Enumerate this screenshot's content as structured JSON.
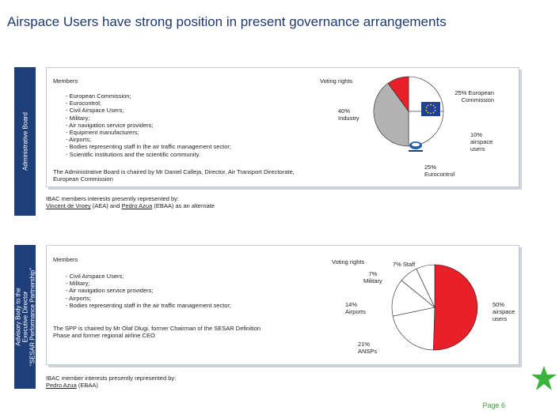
{
  "title": "Airspace Users have strong position in present governance arrangements",
  "colors": {
    "accent_navy": "#1f3f7a",
    "red": "#e8202a",
    "gray": "#b3b3b3",
    "page_green": "#3a9a3a",
    "star_green": "#3cb43c"
  },
  "board": {
    "side_label": "Administrative Board",
    "members_heading": "Members",
    "voting_heading": "Voting rights",
    "members": [
      "- European Commission;",
      "- Eurocontrol;",
      "- Civil Airspace Users;",
      "- Military;",
      "- Air navigation service providers;",
      "- Equipment manufacturers;",
      "- Airports;",
      "- Bodies representing staff in the air traffic management sector;",
      "- Scientific institutions and the scientific community."
    ],
    "chair_line1": "The Administrative Board is chaired by  Mr Daniel Calleja, Director, Air Transport Directorate,",
    "chair_line2": "European Commission",
    "interests_line1": "IBAC members interests presently represented by:",
    "interests_name1": "Vincent de Vroey",
    "interests_mid": " (AEA) and ",
    "interests_name2": "Pedro Azua",
    "interests_end": " (EBAA) as an alternate",
    "chart_labels": {
      "ec": [
        "25% European",
        "Commission"
      ],
      "industry": [
        "40%",
        "Industry"
      ],
      "users": [
        "10%",
        "airspace",
        "users"
      ],
      "eurocontrol": [
        "25%",
        "Eurocontrol"
      ]
    },
    "icon_names": [
      "eu-flag-icon",
      "eurocontrol-logo-icon"
    ]
  },
  "advisory": {
    "side_label_lines": [
      "Advisory Body to the",
      "Executive Director",
      "\"SESAR Performance Partnership\""
    ],
    "members_heading": "Members",
    "voting_heading": "Voting rights",
    "members": [
      "- Civil Airspace Users;",
      "- Military;",
      "- Air navigation service providers;",
      "- Airports;",
      "- Bodies representing staff in the air traffic management sector;"
    ],
    "chair_line1": "The SPP is chaired by  Mr Olaf  Dlugi, former Chairman of the SESAR Definition",
    "chair_line2": "Phase and former regional airline CEO",
    "interests_line1": "IBAC member interests presently represented by:",
    "interests_name": "Pedro Azua",
    "interests_end": " (EBAA)",
    "chart_labels": {
      "staff": [
        "7% Staff"
      ],
      "military": [
        "7%",
        "Military"
      ],
      "airports": [
        "14%",
        "Airports"
      ],
      "users": [
        "50%",
        "airspace",
        "users"
      ],
      "ansps": [
        "21%",
        "ANSPs"
      ]
    }
  },
  "page_label": "Page 6",
  "chart_data": [
    {
      "type": "pie",
      "title": "Voting rights",
      "categories": [
        "European Commission",
        "Eurocontrol",
        "Industry",
        "airspace users"
      ],
      "values": [
        25,
        25,
        40,
        10
      ],
      "colors": [
        "#ffffff",
        "#ffffff",
        "#b3b3b3",
        "#e8202a"
      ]
    },
    {
      "type": "pie",
      "title": "Voting rights",
      "categories": [
        "airspace users",
        "ANSPs",
        "Airports",
        "Military",
        "Staff"
      ],
      "values": [
        50,
        21,
        14,
        7,
        7
      ],
      "colors": [
        "#e8202a",
        "#ffffff",
        "#ffffff",
        "#ffffff",
        "#ffffff"
      ]
    }
  ]
}
